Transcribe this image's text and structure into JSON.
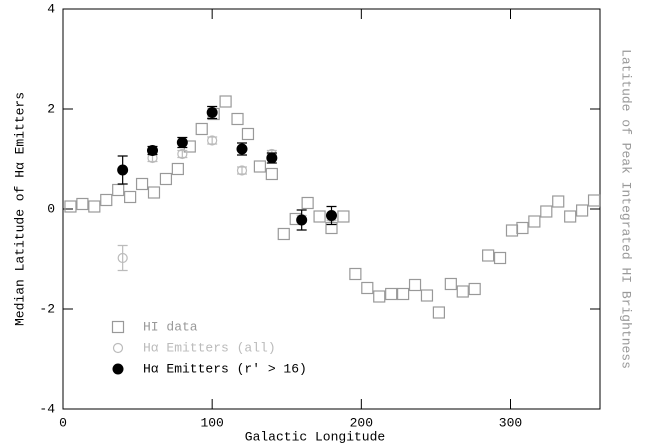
{
  "chart_data": {
    "type": "scatter",
    "xlabel": "Galactic Longitude",
    "ylabel": "Median Latitude of Hα Emitters",
    "y2label": "Latitude of Peak Integrated HI Brightness",
    "xlim": [
      0,
      360
    ],
    "xticks": [
      0,
      100,
      200,
      300
    ],
    "ylim": [
      -4,
      4
    ],
    "yticks": [
      -4,
      -2,
      0,
      2,
      4
    ],
    "legend": "lower left",
    "series": [
      {
        "name": "HI data",
        "color": "#999999",
        "marker": "open-square",
        "x": [
          5,
          13,
          21,
          29,
          37,
          45,
          53,
          61,
          69,
          77,
          85,
          93,
          101,
          109,
          117,
          124,
          132,
          140,
          148,
          156,
          164,
          172,
          180,
          188,
          196,
          204,
          212,
          220,
          228,
          236,
          244,
          252,
          260,
          268,
          276,
          285,
          293,
          301,
          308,
          316,
          324,
          332,
          340,
          348,
          356
        ],
        "values": [
          0.05,
          0.1,
          0.05,
          0.18,
          0.38,
          0.24,
          0.5,
          0.33,
          0.6,
          0.8,
          1.25,
          1.6,
          1.9,
          2.15,
          1.8,
          1.5,
          0.85,
          0.7,
          -0.5,
          -0.2,
          0.12,
          -0.15,
          -0.38,
          -0.15,
          -1.3,
          -1.58,
          -1.75,
          -1.7,
          -1.7,
          -1.52,
          -1.73,
          -2.07,
          -1.5,
          -1.65,
          -1.6,
          -0.93,
          -0.98,
          -0.43,
          -0.38,
          -0.25,
          -0.05,
          0.15,
          -0.15,
          -0.03,
          0.17
        ]
      },
      {
        "name": "Hα Emitters (all)",
        "color": "#bbbbbb",
        "marker": "open-circle",
        "x": [
          40,
          60,
          80,
          100,
          120,
          140,
          160,
          180
        ],
        "values": [
          -0.98,
          1.02,
          1.1,
          1.37,
          0.77,
          1.1,
          -0.2,
          -0.16
        ],
        "errors": [
          0.25,
          0.07,
          0.07,
          0.07,
          0.07,
          0.07,
          0.07,
          0.07
        ]
      },
      {
        "name": "Hα Emitters (r' > 16)",
        "color": "#000000",
        "marker": "filled-circle",
        "x": [
          40,
          60,
          80,
          100,
          120,
          140,
          160,
          180
        ],
        "values": [
          0.78,
          1.17,
          1.33,
          1.93,
          1.2,
          1.02,
          -0.22,
          -0.13
        ],
        "errors": [
          0.28,
          0.08,
          0.1,
          0.12,
          0.12,
          0.1,
          0.2,
          0.18
        ]
      }
    ]
  }
}
